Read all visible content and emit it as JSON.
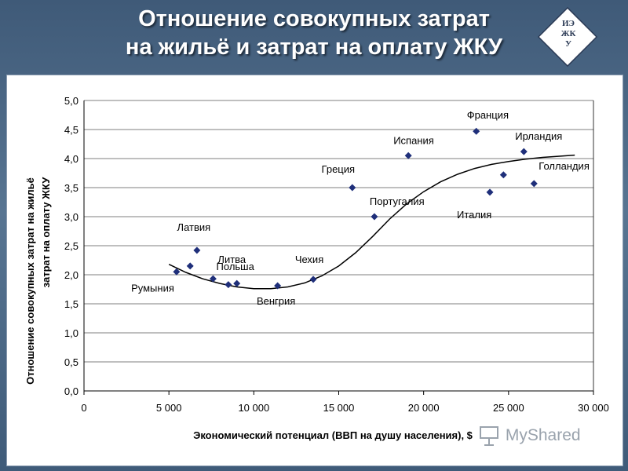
{
  "slide": {
    "title_line1": "Отношение совокупных затрат",
    "title_line2": "на жильё и  затрат на оплату ЖКУ",
    "badge_line1": "ИЭ",
    "badge_line2": "ЖК",
    "badge_line3": "У"
  },
  "watermark": {
    "text": "MyShared"
  },
  "chart_data": {
    "type": "scatter",
    "xlabel": "Экономический потенциал (ВВП на душу населения), $",
    "ylabel_line1": "Отношение совокупных затрат на жильё",
    "ylabel_line2": "затрат на оплату ЖКУ",
    "xlim": [
      0,
      30000
    ],
    "ylim": [
      0,
      5
    ],
    "x_ticks": [
      0,
      5000,
      10000,
      15000,
      20000,
      25000,
      30000
    ],
    "x_tick_labels": [
      "0",
      "5 000",
      "10 000",
      "15 000",
      "20 000",
      "25 000",
      "30 000"
    ],
    "y_ticks": [
      0,
      0.5,
      1,
      1.5,
      2,
      2.5,
      3,
      3.5,
      4,
      4.5,
      5
    ],
    "y_tick_labels": [
      "0,0",
      "0,5",
      "1,0",
      "1,5",
      "2,0",
      "2,5",
      "3,0",
      "3,5",
      "4,0",
      "4,5",
      "5,0"
    ],
    "grid": "horizontal",
    "marker_color": "#1f2f7a",
    "points": [
      {
        "label": "Румыния",
        "x": 5450,
        "y": 2.05
      },
      {
        "label": "",
        "x": 6250,
        "y": 2.15
      },
      {
        "label": "Латвия",
        "x": 6650,
        "y": 2.42
      },
      {
        "label": "Литва",
        "x": 7600,
        "y": 1.93
      },
      {
        "label": "",
        "x": 8500,
        "y": 1.83
      },
      {
        "label": "Польша",
        "x": 9000,
        "y": 1.85
      },
      {
        "label": "Венгрия",
        "x": 11400,
        "y": 1.81
      },
      {
        "label": "Чехия",
        "x": 13500,
        "y": 1.92
      },
      {
        "label": "Греция",
        "x": 15800,
        "y": 3.5
      },
      {
        "label": "Португалия",
        "x": 17100,
        "y": 3.0
      },
      {
        "label": "Испания",
        "x": 19100,
        "y": 4.05
      },
      {
        "label": "Франция",
        "x": 23100,
        "y": 4.47
      },
      {
        "label": "Италия",
        "x": 23900,
        "y": 3.42
      },
      {
        "label": "",
        "x": 24700,
        "y": 3.72
      },
      {
        "label": "Ирландия",
        "x": 25900,
        "y": 4.12
      },
      {
        "label": "Голландия",
        "x": 26500,
        "y": 3.57
      }
    ],
    "trend": {
      "x": [
        5000,
        6000,
        7000,
        8000,
        9000,
        10000,
        11000,
        12000,
        13000,
        14000,
        15000,
        16000,
        17000,
        18000,
        19000,
        20000,
        21000,
        22000,
        23000,
        24000,
        25000,
        26000,
        27000,
        28000,
        28900
      ],
      "y": [
        2.18,
        2.04,
        1.93,
        1.85,
        1.79,
        1.76,
        1.76,
        1.79,
        1.86,
        1.98,
        2.15,
        2.38,
        2.66,
        2.96,
        3.22,
        3.43,
        3.6,
        3.73,
        3.83,
        3.9,
        3.95,
        3.99,
        4.02,
        4.04,
        4.06
      ]
    }
  }
}
